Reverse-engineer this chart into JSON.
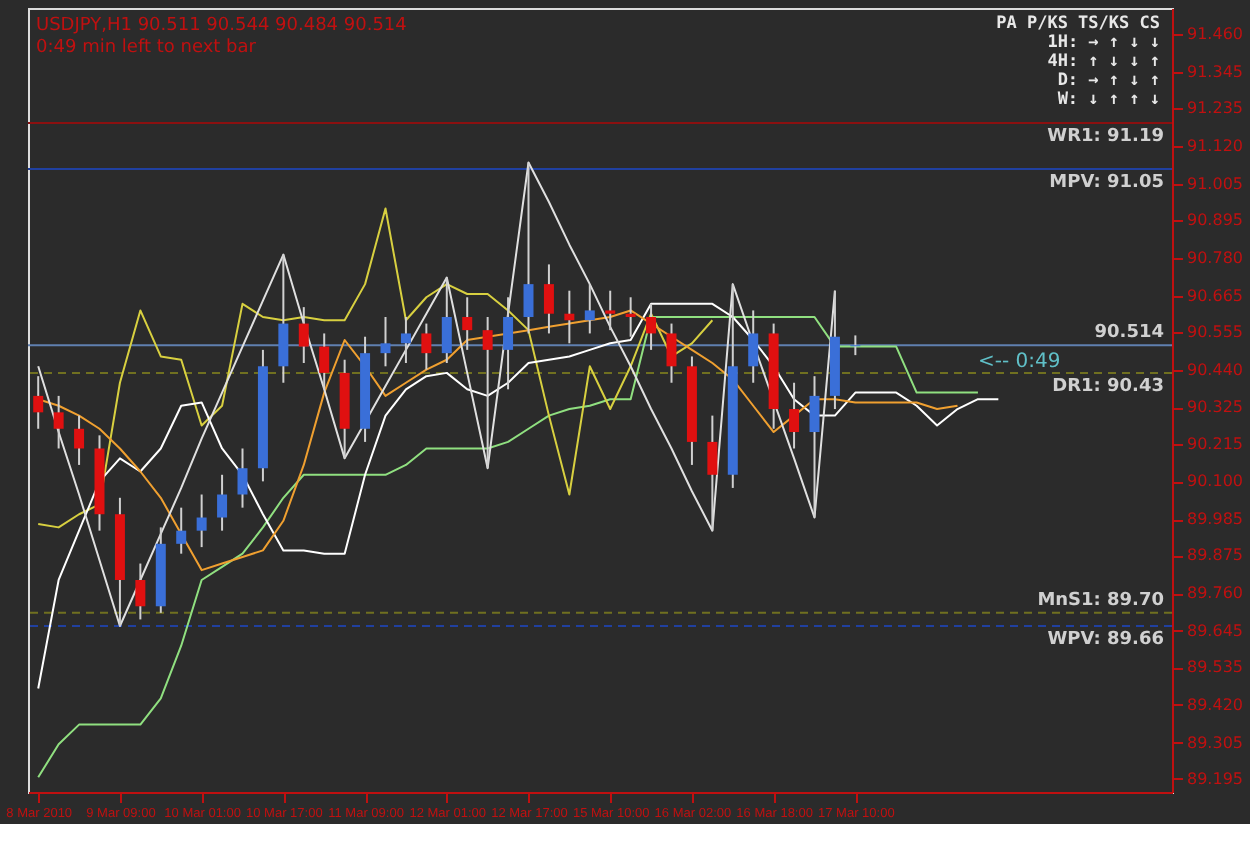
{
  "chart_data": {
    "type": "candlestick",
    "title": "USDJPY,H1  90.511 90.544 90.484 90.514",
    "subtitle": "0:49 min left to next bar",
    "categories": [
      "8 Mar 2010",
      null,
      null,
      null,
      "9 Mar 09:00",
      null,
      null,
      null,
      "10 Mar 01:00",
      null,
      null,
      null,
      "10 Mar 17:00",
      null,
      null,
      null,
      "11 Mar 09:00",
      null,
      null,
      null,
      "12 Mar 01:00",
      null,
      null,
      null,
      "12 Mar 17:00",
      null,
      null,
      null,
      "15 Mar 10:00",
      null,
      null,
      null,
      "16 Mar 02:00",
      null,
      null,
      null,
      "16 Mar 18:00",
      null,
      null,
      null,
      "17 Mar 10:00",
      null,
      null,
      null,
      null,
      null,
      null,
      null,
      null,
      null,
      null,
      null,
      null,
      null,
      null,
      null
    ],
    "ohlc": [
      [
        90.36,
        90.42,
        90.26,
        90.31
      ],
      [
        90.31,
        90.36,
        90.2,
        90.26
      ],
      [
        90.26,
        90.3,
        90.15,
        90.2
      ],
      [
        90.2,
        90.24,
        89.95,
        90.0
      ],
      [
        90.0,
        90.05,
        89.66,
        89.8
      ],
      [
        89.8,
        89.85,
        89.68,
        89.72
      ],
      [
        89.72,
        89.96,
        89.7,
        89.91
      ],
      [
        89.91,
        90.02,
        89.88,
        89.95
      ],
      [
        89.95,
        90.06,
        89.9,
        89.99
      ],
      [
        89.99,
        90.12,
        89.95,
        90.06
      ],
      [
        90.06,
        90.2,
        90.02,
        90.14
      ],
      [
        90.14,
        90.5,
        90.1,
        90.45
      ],
      [
        90.45,
        90.79,
        90.4,
        90.58
      ],
      [
        90.58,
        90.63,
        90.46,
        90.51
      ],
      [
        90.51,
        90.55,
        90.38,
        90.43
      ],
      [
        90.43,
        90.47,
        90.17,
        90.26
      ],
      [
        90.26,
        90.54,
        90.22,
        90.49
      ],
      [
        90.49,
        90.6,
        90.45,
        90.52
      ],
      [
        90.52,
        90.6,
        90.46,
        90.55
      ],
      [
        90.55,
        90.58,
        90.44,
        90.49
      ],
      [
        90.49,
        90.72,
        90.46,
        90.6
      ],
      [
        90.6,
        90.66,
        90.5,
        90.56
      ],
      [
        90.56,
        90.6,
        90.14,
        90.5
      ],
      [
        90.5,
        90.66,
        90.38,
        90.6
      ],
      [
        90.6,
        91.07,
        90.55,
        90.7
      ],
      [
        90.7,
        90.76,
        90.55,
        90.61
      ],
      [
        90.61,
        90.68,
        90.52,
        90.59
      ],
      [
        90.59,
        90.7,
        90.55,
        90.62
      ],
      [
        90.62,
        90.68,
        90.56,
        90.61
      ],
      [
        90.61,
        90.66,
        90.54,
        90.6
      ],
      [
        90.6,
        90.64,
        90.5,
        90.55
      ],
      [
        90.55,
        90.58,
        90.4,
        90.45
      ],
      [
        90.45,
        90.48,
        90.15,
        90.22
      ],
      [
        90.22,
        90.3,
        89.95,
        90.12
      ],
      [
        90.12,
        90.7,
        90.08,
        90.45
      ],
      [
        90.45,
        90.62,
        90.4,
        90.55
      ],
      [
        90.55,
        90.58,
        90.26,
        90.32
      ],
      [
        90.32,
        90.4,
        90.2,
        90.25
      ],
      [
        90.25,
        90.42,
        89.99,
        90.36
      ],
      [
        90.36,
        90.68,
        90.32,
        90.54
      ],
      [
        90.511,
        90.544,
        90.484,
        90.514
      ],
      null,
      null,
      null,
      null,
      null,
      null,
      null,
      null,
      null,
      null,
      null,
      null,
      null,
      null,
      null
    ],
    "series": [
      {
        "type": "line",
        "color": "#90e080",
        "values": [
          89.2,
          89.3,
          89.36,
          89.36,
          89.36,
          89.36,
          89.44,
          89.6,
          89.8,
          89.84,
          89.88,
          89.96,
          90.05,
          90.12,
          90.12,
          90.12,
          90.12,
          90.12,
          90.15,
          90.2,
          90.2,
          90.2,
          90.2,
          90.22,
          90.26,
          90.3,
          90.32,
          90.33,
          90.35,
          90.35,
          90.6,
          90.6,
          90.6,
          90.6,
          90.6,
          90.6,
          90.6,
          90.6,
          90.6,
          90.51,
          90.51,
          90.51,
          90.51,
          90.37,
          90.37,
          90.37,
          90.37,
          null,
          null,
          null,
          null,
          null,
          null,
          null,
          null,
          null
        ]
      },
      {
        "type": "line",
        "color": "#d8d040",
        "values": [
          89.97,
          89.96,
          90.0,
          90.03,
          90.4,
          90.62,
          90.48,
          90.47,
          90.27,
          90.33,
          90.64,
          90.6,
          90.59,
          90.6,
          90.59,
          90.59,
          90.7,
          90.93,
          90.59,
          90.66,
          90.7,
          90.67,
          90.67,
          90.62,
          90.56,
          90.3,
          90.06,
          90.45,
          90.32,
          90.45,
          90.61,
          90.48,
          90.52,
          90.59,
          null,
          null,
          null,
          null,
          null,
          null,
          null,
          null,
          null,
          null,
          null,
          null,
          null,
          null,
          null,
          null,
          null,
          null,
          null,
          null,
          null,
          null
        ]
      },
      {
        "type": "line",
        "color": "#ffffff",
        "values": [
          89.47,
          89.8,
          89.95,
          90.1,
          90.17,
          90.13,
          90.2,
          90.33,
          90.34,
          90.2,
          90.12,
          90.0,
          89.89,
          89.89,
          89.88,
          89.88,
          90.12,
          90.3,
          90.38,
          90.42,
          90.43,
          90.38,
          90.36,
          90.4,
          90.46,
          90.47,
          90.48,
          90.5,
          90.52,
          90.53,
          90.64,
          90.64,
          90.64,
          90.64,
          90.6,
          90.53,
          90.45,
          90.35,
          90.3,
          90.3,
          90.37,
          90.37,
          90.37,
          90.33,
          90.27,
          90.32,
          90.35,
          90.35,
          null,
          null,
          null,
          null,
          null,
          null,
          null,
          null
        ]
      },
      {
        "type": "line",
        "color": "#f0a030",
        "values": [
          90.35,
          90.33,
          90.3,
          90.26,
          90.2,
          90.13,
          90.05,
          89.94,
          89.83,
          89.85,
          89.87,
          89.89,
          89.98,
          90.15,
          90.37,
          90.53,
          90.45,
          90.36,
          90.4,
          90.44,
          90.47,
          90.53,
          90.54,
          90.55,
          90.56,
          90.57,
          90.58,
          90.59,
          90.6,
          90.62,
          90.58,
          90.54,
          90.5,
          90.46,
          90.41,
          90.33,
          90.25,
          90.3,
          90.35,
          90.35,
          90.34,
          90.34,
          90.34,
          90.34,
          90.32,
          90.33,
          null,
          null,
          null,
          null,
          null,
          null,
          null,
          null,
          null,
          null
        ]
      },
      {
        "type": "line",
        "color": "#e0e0e0",
        "values": [
          90.45,
          90.25,
          90.06,
          89.86,
          89.66,
          89.8,
          89.94,
          90.08,
          90.23,
          90.37,
          90.51,
          90.65,
          90.79,
          90.58,
          90.38,
          90.17,
          90.28,
          90.39,
          90.5,
          90.61,
          90.72,
          90.43,
          90.14,
          90.61,
          91.07,
          90.95,
          90.82,
          90.7,
          90.57,
          90.45,
          90.32,
          90.2,
          90.07,
          89.95,
          90.7,
          90.52,
          null,
          90.17,
          89.99,
          90.68,
          null,
          null,
          null,
          null,
          null,
          null,
          null,
          null,
          null,
          null,
          null,
          null,
          null,
          null,
          null,
          null
        ]
      }
    ],
    "ref_lines": [
      {
        "axis": "y",
        "value": 91.19,
        "label": "WR1: 91.19",
        "color": "#8b1010",
        "line_style": "solid"
      },
      {
        "axis": "y",
        "value": 91.05,
        "label": "MPV: 91.05",
        "color": "#2040a0",
        "line_style": "solid"
      },
      {
        "axis": "y",
        "value": 90.514,
        "label": "90.514",
        "color": "#6080b0",
        "line_style": "solid"
      },
      {
        "axis": "y",
        "value": 90.43,
        "label": "DR1: 90.43",
        "color": "#707020",
        "line_style": "dashed"
      },
      {
        "axis": "y",
        "value": 89.7,
        "label": "MnS1: 89.70",
        "color": "#707020",
        "line_style": "dashed"
      },
      {
        "axis": "y",
        "value": 89.66,
        "label": "WPV: 89.66",
        "color": "#2040a0",
        "line_style": "dashed"
      }
    ],
    "annotations": [
      "PA   P/KS  TS/KS  CS",
      "1H:  →    ↑     ↓    ↓",
      "4H:  ↑    ↓     ↓    ↑",
      "D:   →    ↑     ↓    ↑",
      "W:   ↓    ↑     ↑    ↓",
      "<-- 0:49"
    ],
    "ylim": [
      89.155,
      91.54
    ],
    "yticks": [
      {
        "value": 91.46,
        "label": "91.460"
      },
      {
        "value": 91.345,
        "label": "91.345"
      },
      {
        "value": 91.235,
        "label": "91.235"
      },
      {
        "value": 91.12,
        "label": "91.120"
      },
      {
        "value": 91.005,
        "label": "91.005"
      },
      {
        "value": 90.895,
        "label": "90.895"
      },
      {
        "value": 90.78,
        "label": "90.780"
      },
      {
        "value": 90.665,
        "label": "90.665"
      },
      {
        "value": 90.555,
        "label": "90.555"
      },
      {
        "value": 90.44,
        "label": "90.440"
      },
      {
        "value": 90.325,
        "label": "90.325"
      },
      {
        "value": 90.215,
        "label": "90.215"
      },
      {
        "value": 90.1,
        "label": "90.100"
      },
      {
        "value": 89.985,
        "label": "89.985"
      },
      {
        "value": 89.875,
        "label": "89.875"
      },
      {
        "value": 89.76,
        "label": "89.760"
      },
      {
        "value": 89.645,
        "label": "89.645"
      },
      {
        "value": 89.535,
        "label": "89.535"
      },
      {
        "value": 89.42,
        "label": "89.420"
      },
      {
        "value": 89.305,
        "label": "89.305"
      },
      {
        "value": 89.195,
        "label": "89.195"
      }
    ]
  }
}
